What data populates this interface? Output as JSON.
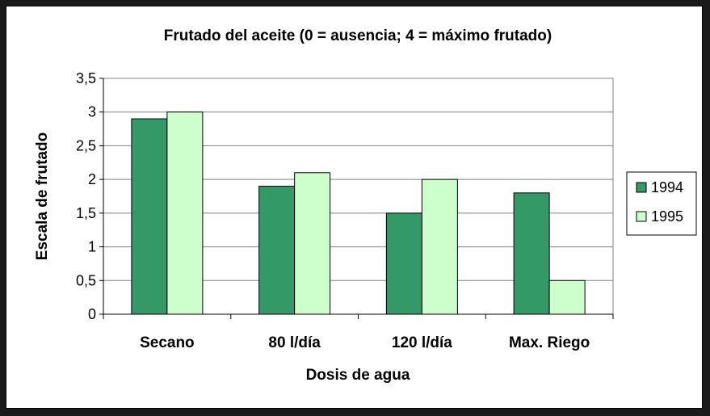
{
  "chart_data": {
    "type": "bar",
    "title": "Frutado del aceite (0 = ausencia; 4 = máximo frutado)",
    "xlabel": "Dosis de agua",
    "ylabel": "Escala de frutado",
    "categories": [
      "Secano",
      "80 l/día",
      "120 l/día",
      "Max. Riego"
    ],
    "series": [
      {
        "name": "1994",
        "values": [
          2.9,
          1.9,
          1.5,
          1.8
        ],
        "color": "#339966"
      },
      {
        "name": "1995",
        "values": [
          3.0,
          2.1,
          2.0,
          0.5
        ],
        "color": "#CCFFCC"
      }
    ],
    "ylim": [
      0,
      3.5
    ],
    "yticks": [
      "0",
      "0,5",
      "1",
      "1,5",
      "2",
      "2,5",
      "3",
      "3,5"
    ],
    "grid": true,
    "legend_position": "right"
  }
}
